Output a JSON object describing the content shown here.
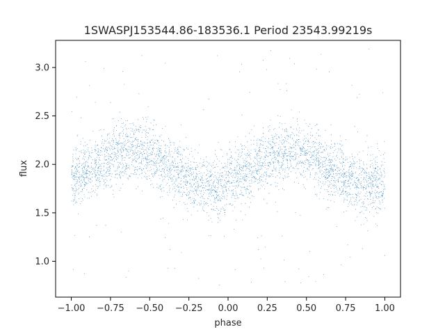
{
  "chart_data": {
    "type": "scatter",
    "title": "1SWASPJ153544.86-183536.1 Period 23543.99219s",
    "xlabel": "phase",
    "ylabel": "flux",
    "xlim": [
      -1.1,
      1.1
    ],
    "ylim": [
      0.63,
      3.28
    ],
    "xticks": [
      -1.0,
      -0.75,
      -0.5,
      -0.25,
      0.0,
      0.25,
      0.5,
      0.75,
      1.0
    ],
    "xtick_labels": [
      "−1.00",
      "−0.75",
      "−0.50",
      "−0.25",
      "0.00",
      "0.25",
      "0.50",
      "0.75",
      "1.00"
    ],
    "yticks": [
      1.0,
      1.5,
      2.0,
      2.5,
      3.0
    ],
    "ytick_labels": [
      "1.0",
      "1.5",
      "2.0",
      "2.5",
      "3.0"
    ],
    "grid": false,
    "legend": "none",
    "marker_color": "#1f77b4",
    "series": [
      {
        "phase_range": [
          -1.0,
          1.0
        ],
        "approx_point_count": 30000,
        "mean_flux_curve": {
          "phase": [
            -1.0,
            -0.85,
            -0.7,
            -0.6,
            -0.5,
            -0.35,
            -0.2,
            -0.1,
            0.0,
            0.15,
            0.3,
            0.4,
            0.5,
            0.65,
            0.8,
            0.9,
            1.0
          ],
          "flux": [
            1.85,
            1.98,
            2.12,
            2.15,
            2.1,
            1.95,
            1.8,
            1.77,
            1.8,
            1.95,
            2.12,
            2.15,
            2.1,
            1.95,
            1.82,
            1.79,
            1.82
          ]
        },
        "scatter_std": 0.15,
        "outlier_flux_range": [
          0.75,
          3.2
        ]
      }
    ]
  }
}
